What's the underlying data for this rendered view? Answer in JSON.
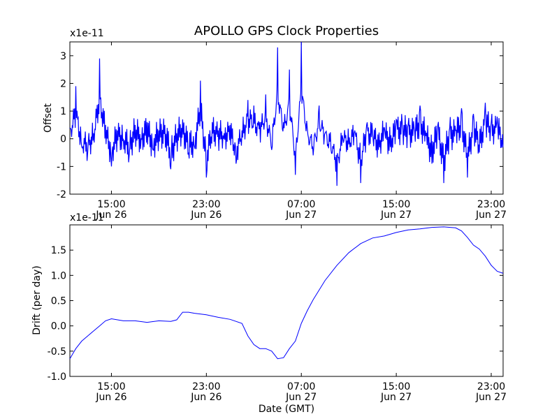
{
  "figure": {
    "title": "APOLLO GPS Clock Properties"
  },
  "chart_data": [
    {
      "type": "line",
      "title": "APOLLO GPS Clock Properties",
      "ylabel": "Offset",
      "xlabel": "",
      "y_multiplier_label": "x1e-11",
      "ylim": [
        -2,
        3.5
      ],
      "xlim": [
        "Jun 26 11:30",
        "Jun 28 00:00"
      ],
      "y_ticks": [
        -2,
        -1,
        0,
        1,
        2,
        3
      ],
      "y_tick_labels": [
        "-2",
        "-1",
        "0",
        "1",
        "2",
        "3"
      ],
      "x_ticks": [
        {
          "time": "Jun 26 15:00",
          "line1": "15:00",
          "line2": "Jun 26"
        },
        {
          "time": "Jun 26 23:00",
          "line1": "23:00",
          "line2": "Jun 26"
        },
        {
          "time": "Jun 27 07:00",
          "line1": "07:00",
          "line2": "Jun 27"
        },
        {
          "time": "Jun 27 15:00",
          "line1": "15:00",
          "line2": "Jun 27"
        },
        {
          "time": "Jun 27 23:00",
          "line1": "23:00",
          "line2": "Jun 27"
        }
      ],
      "grid": false,
      "series": [
        {
          "color": "#0000ff",
          "x": [
            "Jun 26 11:30",
            "Jun 26 12:00",
            "Jun 26 12:30",
            "Jun 26 13:00",
            "Jun 26 13:30",
            "Jun 26 14:00",
            "Jun 26 14:30",
            "Jun 26 15:00",
            "Jun 26 15:30",
            "Jun 26 16:00",
            "Jun 26 16:30",
            "Jun 26 17:00",
            "Jun 26 17:30",
            "Jun 26 18:00",
            "Jun 26 18:30",
            "Jun 26 19:00",
            "Jun 26 19:30",
            "Jun 26 20:00",
            "Jun 26 20:30",
            "Jun 26 21:00",
            "Jun 26 21:30",
            "Jun 26 22:00",
            "Jun 26 22:30",
            "Jun 26 23:00",
            "Jun 26 23:30",
            "Jun 27 00:00",
            "Jun 27 00:30",
            "Jun 27 01:00",
            "Jun 27 01:30",
            "Jun 27 02:00",
            "Jun 27 02:30",
            "Jun 27 03:00",
            "Jun 27 03:30",
            "Jun 27 04:00",
            "Jun 27 04:30",
            "Jun 27 05:00",
            "Jun 27 05:30",
            "Jun 27 06:00",
            "Jun 27 06:30",
            "Jun 27 07:00",
            "Jun 27 07:30",
            "Jun 27 08:00",
            "Jun 27 08:30",
            "Jun 27 09:00",
            "Jun 27 09:30",
            "Jun 27 10:00",
            "Jun 27 10:30",
            "Jun 27 11:00",
            "Jun 27 11:30",
            "Jun 27 12:00",
            "Jun 27 12:30",
            "Jun 27 13:00",
            "Jun 27 13:30",
            "Jun 27 14:00",
            "Jun 27 14:30",
            "Jun 27 15:00",
            "Jun 27 15:30",
            "Jun 27 16:00",
            "Jun 27 16:30",
            "Jun 27 17:00",
            "Jun 27 17:30",
            "Jun 27 18:00",
            "Jun 27 18:30",
            "Jun 27 19:00",
            "Jun 27 19:30",
            "Jun 27 20:00",
            "Jun 27 20:30",
            "Jun 27 21:00",
            "Jun 27 21:30",
            "Jun 27 22:00",
            "Jun 27 22:30",
            "Jun 27 23:00",
            "Jun 27 23:30",
            "Jun 28 00:00"
          ],
          "y": [
            0.4,
            1.9,
            -0.3,
            -0.5,
            0.2,
            2.9,
            0.5,
            -1.0,
            0.3,
            0.0,
            -0.6,
            0.5,
            0.0,
            0.6,
            -0.4,
            0.3,
            0.5,
            -1.1,
            0.2,
            0.7,
            -0.5,
            -0.3,
            2.1,
            -1.4,
            0.6,
            0.3,
            0.2,
            0.5,
            -0.9,
            0.3,
            1.4,
            1.2,
            0.6,
            1.6,
            -0.4,
            3.3,
            0.6,
            2.5,
            -1.3,
            3.5,
            0.4,
            -0.6,
            1.2,
            0.2,
            -0.4,
            -1.7,
            0.0,
            -0.2,
            0.3,
            -1.6,
            0.5,
            0.2,
            -0.4,
            0.4,
            -0.3,
            0.7,
            0.6,
            0.5,
            0.4,
            1.2,
            0.1,
            -0.9,
            0.5,
            -1.6,
            0.4,
            0.3,
            1.1,
            -1.4,
            0.9,
            -0.5,
            1.3,
            0.6,
            0.8,
            -0.3
          ]
        }
      ]
    },
    {
      "type": "line",
      "title": "",
      "xlabel": "Date (GMT)",
      "ylabel": "Drift (per day)",
      "y_multiplier_label": "x1e-11",
      "ylim": [
        -1.0,
        2.0
      ],
      "xlim": [
        "Jun 26 11:30",
        "Jun 28 00:00"
      ],
      "y_ticks": [
        -1.0,
        -0.5,
        0.0,
        0.5,
        1.0,
        1.5
      ],
      "y_tick_labels": [
        "-1.0",
        "-0.5",
        "0.0",
        "0.5",
        "1.0",
        "1.5"
      ],
      "x_ticks": [
        {
          "time": "Jun 26 15:00",
          "line1": "15:00",
          "line2": "Jun 26"
        },
        {
          "time": "Jun 26 23:00",
          "line1": "23:00",
          "line2": "Jun 26"
        },
        {
          "time": "Jun 27 07:00",
          "line1": "07:00",
          "line2": "Jun 27"
        },
        {
          "time": "Jun 27 15:00",
          "line1": "15:00",
          "line2": "Jun 27"
        },
        {
          "time": "Jun 27 23:00",
          "line1": "23:00",
          "line2": "Jun 27"
        }
      ],
      "grid": false,
      "series": [
        {
          "color": "#0000ff",
          "x": [
            "Jun 26 11:30",
            "Jun 26 12:00",
            "Jun 26 12:30",
            "Jun 26 13:00",
            "Jun 26 13:30",
            "Jun 26 14:00",
            "Jun 26 14:30",
            "Jun 26 15:00",
            "Jun 26 16:00",
            "Jun 26 17:00",
            "Jun 26 18:00",
            "Jun 26 19:00",
            "Jun 26 20:00",
            "Jun 26 20:30",
            "Jun 26 21:00",
            "Jun 26 21:30",
            "Jun 26 22:00",
            "Jun 26 23:00",
            "Jun 27 00:00",
            "Jun 27 01:00",
            "Jun 27 02:00",
            "Jun 27 02:30",
            "Jun 27 03:00",
            "Jun 27 03:30",
            "Jun 27 04:00",
            "Jun 27 04:30",
            "Jun 27 05:00",
            "Jun 27 05:30",
            "Jun 27 06:00",
            "Jun 27 06:30",
            "Jun 27 07:00",
            "Jun 27 07:30",
            "Jun 27 08:00",
            "Jun 27 09:00",
            "Jun 27 10:00",
            "Jun 27 11:00",
            "Jun 27 12:00",
            "Jun 27 13:00",
            "Jun 27 14:00",
            "Jun 27 15:00",
            "Jun 27 16:00",
            "Jun 27 17:00",
            "Jun 27 18:00",
            "Jun 27 19:00",
            "Jun 27 20:00",
            "Jun 27 20:30",
            "Jun 27 21:00",
            "Jun 27 21:30",
            "Jun 27 22:00",
            "Jun 27 22:30",
            "Jun 27 23:00",
            "Jun 27 23:30",
            "Jun 28 00:00"
          ],
          "y": [
            -0.65,
            -0.45,
            -0.3,
            -0.2,
            -0.1,
            0.0,
            0.1,
            0.14,
            0.1,
            0.1,
            0.07,
            0.1,
            0.09,
            0.12,
            0.27,
            0.27,
            0.25,
            0.22,
            0.17,
            0.13,
            0.05,
            -0.2,
            -0.37,
            -0.45,
            -0.45,
            -0.5,
            -0.65,
            -0.63,
            -0.45,
            -0.3,
            0.05,
            0.3,
            0.52,
            0.9,
            1.2,
            1.45,
            1.63,
            1.74,
            1.78,
            1.85,
            1.9,
            1.92,
            1.95,
            1.96,
            1.94,
            1.88,
            1.75,
            1.6,
            1.52,
            1.38,
            1.2,
            1.08,
            1.04
          ]
        }
      ]
    }
  ]
}
